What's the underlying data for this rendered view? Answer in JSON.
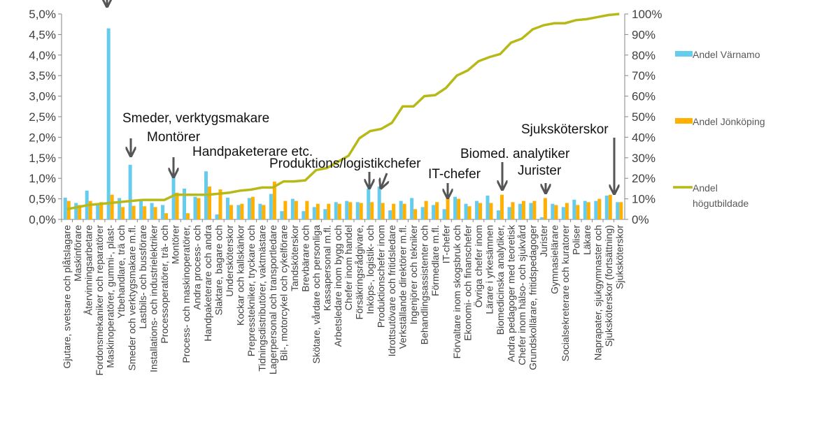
{
  "chart_data": {
    "type": "bar_line",
    "categories": [
      "Gjutare, svetsare och plåtslagare",
      "Maskinförare",
      "Återvinningsarbetare",
      "Fordonsmekaniker och reparatörer",
      "Maskinoperatörer, gummi-, plast-",
      "Ytbehandlare, trä och",
      "Smeder och verktygsmakare m.fl.",
      "Lastbils- och bussförare",
      "Installations- och industrielektriker",
      "Processoperatörer, trä- och",
      "Montörer",
      "Process- och maskinoperatörer,",
      "Andra process- och",
      "Handpaketerare och andra",
      "Slaktare, bagare och",
      "Undersköterskor",
      "Kockar och kallskänkor",
      "Prepresstekniker, tryckare och",
      "Tidningsdistributörer, vaktmästare",
      "Lagerpersonal och transportledare",
      "Bil-, motorcykel och cykelförare",
      "Tandsköterskor",
      "Brevbärare och",
      "Skötare, vårdare och personliga",
      "Kassapersonal m.fl.",
      "Arbetsledare inom bygg och",
      "Chefer inom handel",
      "Försäkringsrådgivare,",
      "Inköps-, logistik- och",
      "Produktionschefer inom",
      "Idrottsutövare och fritidsledare",
      "Verkställande direktörer m.fl.",
      "Ingenjörer och tekniker",
      "Behandlingsassistenter och",
      "Förmedlare m.fl.",
      "IT-chefer",
      "Förvaltare inom skogsbruk och",
      "Ekonomi- och finanschefer",
      "Övriga chefer inom",
      "Lärare i yrkesämnen",
      "Biomedicinska analytiker,",
      "Andra pedagoger med teoretisk",
      "Chefer inom hälso- och sjukvård",
      "Grundskollärare, fritidspedagoger",
      "Jurister",
      "Gymnasielärare",
      "Socialsekreterare och kuratorer",
      "Poliser",
      "Läkare",
      "Naprapater, sjukgymnaster och",
      "Sjuksköterskor (fortsättning)",
      "Sjuksköterskor"
    ],
    "series": [
      {
        "name": "Andel Värnamo",
        "color": "#66ccee",
        "values": [
          0.53,
          0.4,
          0.7,
          0.38,
          4.65,
          0.52,
          1.33,
          0.45,
          0.4,
          0.35,
          1.1,
          0.75,
          0.55,
          1.17,
          0.12,
          0.53,
          0.35,
          0.52,
          0.38,
          0.62,
          0.2,
          0.5,
          0.2,
          0.3,
          0.25,
          0.42,
          0.45,
          0.42,
          0.75,
          0.8,
          0.22,
          0.45,
          0.52,
          0.3,
          0.35,
          0.25,
          0.55,
          0.38,
          0.45,
          0.58,
          0.22,
          0.3,
          0.38,
          0.4,
          0.05,
          0.38,
          0.3,
          0.48,
          0.45,
          0.45,
          0.58,
          0.42
        ]
      },
      {
        "name": "Andel Jönköping",
        "color": "#ffb000",
        "values": [
          0.45,
          0.35,
          0.45,
          0.42,
          0.6,
          0.3,
          0.33,
          0.32,
          0.3,
          0.15,
          0.65,
          0.15,
          0.52,
          0.8,
          0.73,
          0.35,
          0.38,
          0.55,
          0.35,
          0.92,
          0.45,
          0.45,
          0.45,
          0.38,
          0.38,
          0.38,
          0.42,
          0.4,
          0.42,
          0.4,
          0.38,
          0.38,
          0.25,
          0.45,
          0.42,
          0.6,
          0.5,
          0.32,
          0.4,
          0.4,
          0.6,
          0.42,
          0.45,
          0.45,
          0.52,
          0.35,
          0.4,
          0.35,
          0.42,
          0.5,
          0.6,
          0.42
        ]
      },
      {
        "name": "Andel högutbildade",
        "color": "#b7b919",
        "axis": "y2",
        "values": [
          5,
          6,
          7,
          7.5,
          8,
          8.5,
          9,
          9.5,
          9.5,
          9.5,
          12,
          12,
          12,
          12,
          12.5,
          13,
          14,
          14.5,
          15.5,
          15.5,
          18.5,
          18.5,
          19,
          24,
          25,
          28,
          31,
          39.5,
          43,
          44,
          47,
          55,
          55,
          60,
          60.5,
          64,
          70,
          72.5,
          77,
          79,
          80.5,
          86,
          88,
          92.5,
          94.5,
          95.5,
          95.5,
          97,
          97.5,
          98.5,
          99.5,
          100
        ]
      }
    ],
    "ylim": [
      0,
      5
    ],
    "yticks": [
      {
        "value": 0,
        "label": "0,0%"
      },
      {
        "value": 0.5,
        "label": "0,5%"
      },
      {
        "value": 1,
        "label": "1,0%"
      },
      {
        "value": 1.5,
        "label": "1,5%"
      },
      {
        "value": 2,
        "label": "2,0%"
      },
      {
        "value": 2.5,
        "label": "2,5%"
      },
      {
        "value": 3,
        "label": "3,0%"
      },
      {
        "value": 3.5,
        "label": "3,5%"
      },
      {
        "value": 4,
        "label": "4,0%"
      },
      {
        "value": 4.5,
        "label": "4,5%"
      },
      {
        "value": 5,
        "label": "5,0%"
      }
    ],
    "y2lim": [
      0,
      100
    ],
    "y2ticks": [
      {
        "value": 0,
        "label": "0%"
      },
      {
        "value": 10,
        "label": "10%"
      },
      {
        "value": 20,
        "label": "20%"
      },
      {
        "value": 30,
        "label": "30%"
      },
      {
        "value": 40,
        "label": "40%"
      },
      {
        "value": 50,
        "label": "50%"
      },
      {
        "value": 60,
        "label": "60%"
      },
      {
        "value": 70,
        "label": "70%"
      },
      {
        "value": 80,
        "label": "80%"
      },
      {
        "value": 90,
        "label": "90%"
      },
      {
        "value": 100,
        "label": "100%"
      }
    ],
    "annotations": [
      "Smeder, verktygsmakare",
      "Montörer",
      "Handpaketerare etc.",
      "Produktions/logistikchefer",
      "IT-chefer",
      "Biomed. analytiker",
      "Jurister",
      "Sjuksköterskor"
    ]
  }
}
